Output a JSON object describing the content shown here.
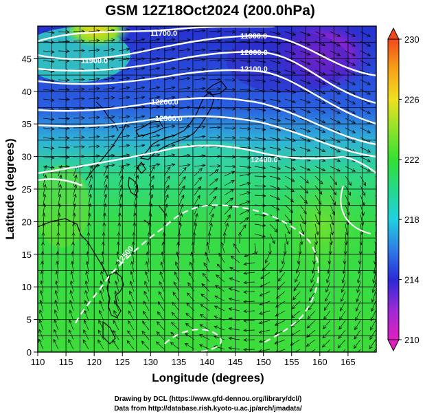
{
  "title": "GSM 12Z18Oct2024 (200.0hPa)",
  "x_axis": {
    "label": "Longitude (degrees)",
    "ticks": [
      "110",
      "115",
      "120",
      "125",
      "130",
      "135",
      "140",
      "145",
      "150",
      "155",
      "160",
      "165"
    ]
  },
  "y_axis": {
    "label": "Latitude (degrees)",
    "ticks": [
      "0",
      "5",
      "10",
      "15",
      "20",
      "25",
      "30",
      "35",
      "40",
      "45"
    ]
  },
  "colorbar": {
    "ticks": [
      "210",
      "214",
      "218",
      "222",
      "226",
      "230"
    ],
    "colors": [
      "#e01fbf",
      "#9a2bd6",
      "#2a2ad6",
      "#2f7de6",
      "#1fd0e0",
      "#25d98a",
      "#33e033",
      "#8fe32a",
      "#f0e020",
      "#f7a21a",
      "#f04a1a"
    ]
  },
  "contour_labels": {
    "c1": "11700.0",
    "c2": "11900.0",
    "c3": "11900.0",
    "c4": "12000.0",
    "c5": "12100.0",
    "c6": "12200.0",
    "c7": "12300.0",
    "c8": "12400.0",
    "c9": "12500"
  },
  "credits": {
    "line1": "Drawing by DCL (https://www.gfd-dennou.org/library/dcl/)",
    "line2": "Data from http://database.rish.kyoto-u.ac.jp/arch/jmadata/"
  },
  "chart_data": {
    "type": "heatmap",
    "title": "GSM 12Z18Oct2024 (200.0hPa)",
    "xlabel": "Longitude (degrees)",
    "ylabel": "Latitude (degrees)",
    "xlim": [
      110,
      170
    ],
    "ylim": [
      0,
      50
    ],
    "colorbar_range": [
      210,
      230
    ],
    "contour_levels": [
      11700,
      11900,
      12000,
      12100,
      12200,
      12300,
      12400,
      12500
    ]
  }
}
